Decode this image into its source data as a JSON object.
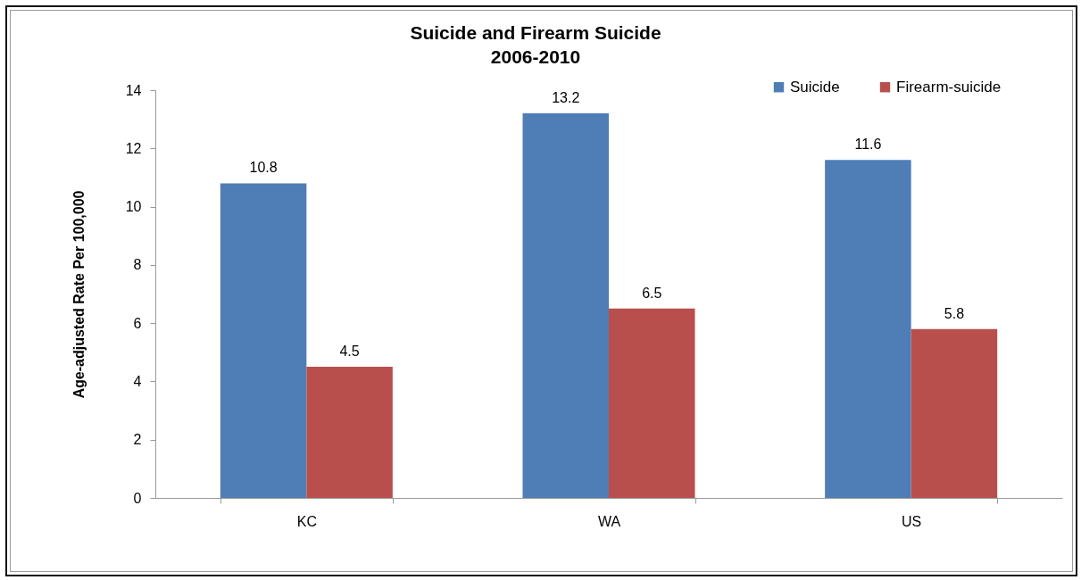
{
  "chart_data": {
    "type": "bar",
    "title": "Suicide and Firearm Suicide",
    "subtitle": "2006-2010",
    "ylabel": "Age-adjusted Rate Per 100,000",
    "categories": [
      "KC",
      "WA",
      "US"
    ],
    "series": [
      {
        "name": "Suicide",
        "color": "#4f7db6",
        "values": [
          10.8,
          13.2,
          11.6
        ]
      },
      {
        "name": "Firearm-suicide",
        "color": "#b94f4c",
        "values": [
          4.5,
          6.5,
          5.8
        ]
      }
    ],
    "ylim": [
      0,
      14
    ],
    "yticks": [
      0,
      2,
      4,
      6,
      8,
      10,
      12,
      14
    ],
    "legend": "top right",
    "data_labels": true
  }
}
